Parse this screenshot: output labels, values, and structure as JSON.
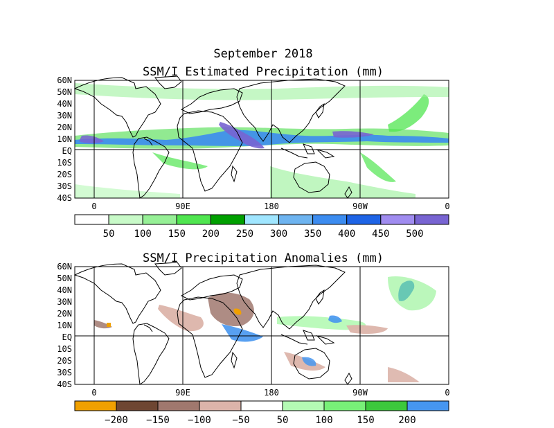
{
  "header": {
    "date": "September 2018",
    "panel1_title": "SSM/I Estimated Precipitation (mm)",
    "panel2_title": "SSM/I Precipitation Anomalies (mm)"
  },
  "axes": {
    "lat_labels": [
      "60N",
      "50N",
      "40N",
      "30N",
      "20N",
      "10N",
      "EQ",
      "10S",
      "20S",
      "30S",
      "40S"
    ],
    "lon_labels": [
      "0",
      "90E",
      "180",
      "90W",
      "0"
    ]
  },
  "colorbar1": {
    "colors": [
      "#ffffff",
      "#c8fac8",
      "#96f096",
      "#50e650",
      "#00a000",
      "#a0e6ff",
      "#6eb4f0",
      "#3c8cf0",
      "#1e64e6",
      "#a08cf0",
      "#7864d2"
    ],
    "labels": [
      "50",
      "100",
      "150",
      "200",
      "250",
      "300",
      "350",
      "400",
      "450",
      "500"
    ]
  },
  "colorbar2": {
    "colors": [
      "#f0a000",
      "#6e4632",
      "#a0786e",
      "#dcb4aa",
      "#ffffff",
      "#b4fab4",
      "#78f078",
      "#3cc83c",
      "#4696f0"
    ],
    "labels": [
      "−200",
      "−150",
      "−100",
      "−50",
      "50",
      "100",
      "150",
      "200"
    ]
  }
}
